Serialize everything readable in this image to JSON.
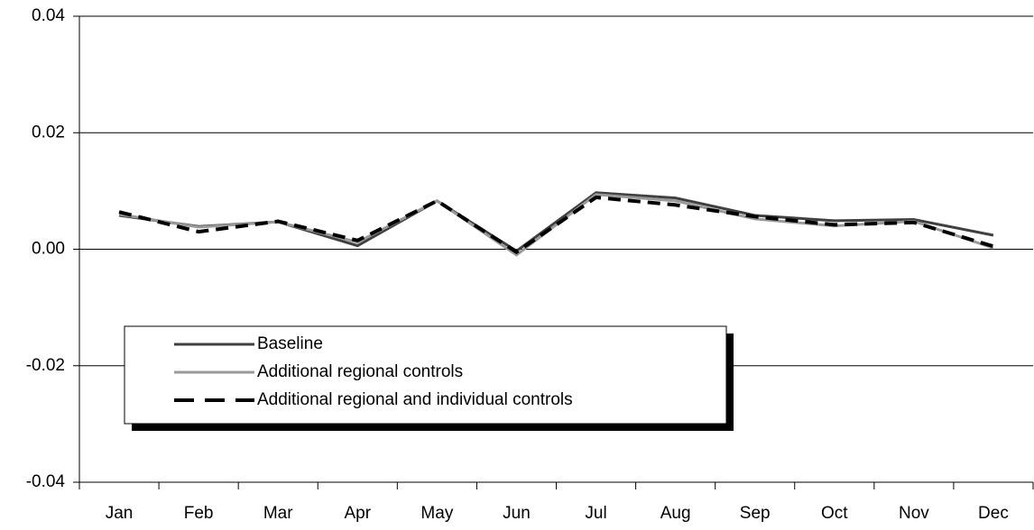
{
  "chart_data": {
    "type": "line",
    "categories": [
      "Jan",
      "Feb",
      "Mar",
      "Apr",
      "May",
      "Jun",
      "Jul",
      "Aug",
      "Sep",
      "Oct",
      "Nov",
      "Dec"
    ],
    "series": [
      {
        "name": "Baseline",
        "color": "#404040",
        "dashed": false,
        "values": [
          0.0058,
          0.0039,
          0.0047,
          0.0006,
          0.0083,
          -0.0003,
          0.0097,
          0.0088,
          0.0058,
          0.0049,
          0.0051,
          0.0024
        ]
      },
      {
        "name": "Additional regional controls",
        "color": "#999999",
        "dashed": false,
        "values": [
          0.006,
          0.0038,
          0.0047,
          0.0012,
          0.0083,
          -0.001,
          0.0094,
          0.0083,
          0.0052,
          0.004,
          0.0048,
          0.0002
        ]
      },
      {
        "name": "Additional regional and individual controls",
        "color": "#000000",
        "dashed": true,
        "values": [
          0.0064,
          0.003,
          0.0048,
          0.0015,
          0.0083,
          -0.0005,
          0.0089,
          0.0076,
          0.0056,
          0.0042,
          0.0046,
          0.0005
        ]
      }
    ],
    "ylim": [
      -0.04,
      0.04
    ],
    "yticks": [
      -0.04,
      -0.02,
      {
        "value": 0,
        "label": "0.00"
      },
      0.02,
      0.04
    ],
    "grid": true
  }
}
